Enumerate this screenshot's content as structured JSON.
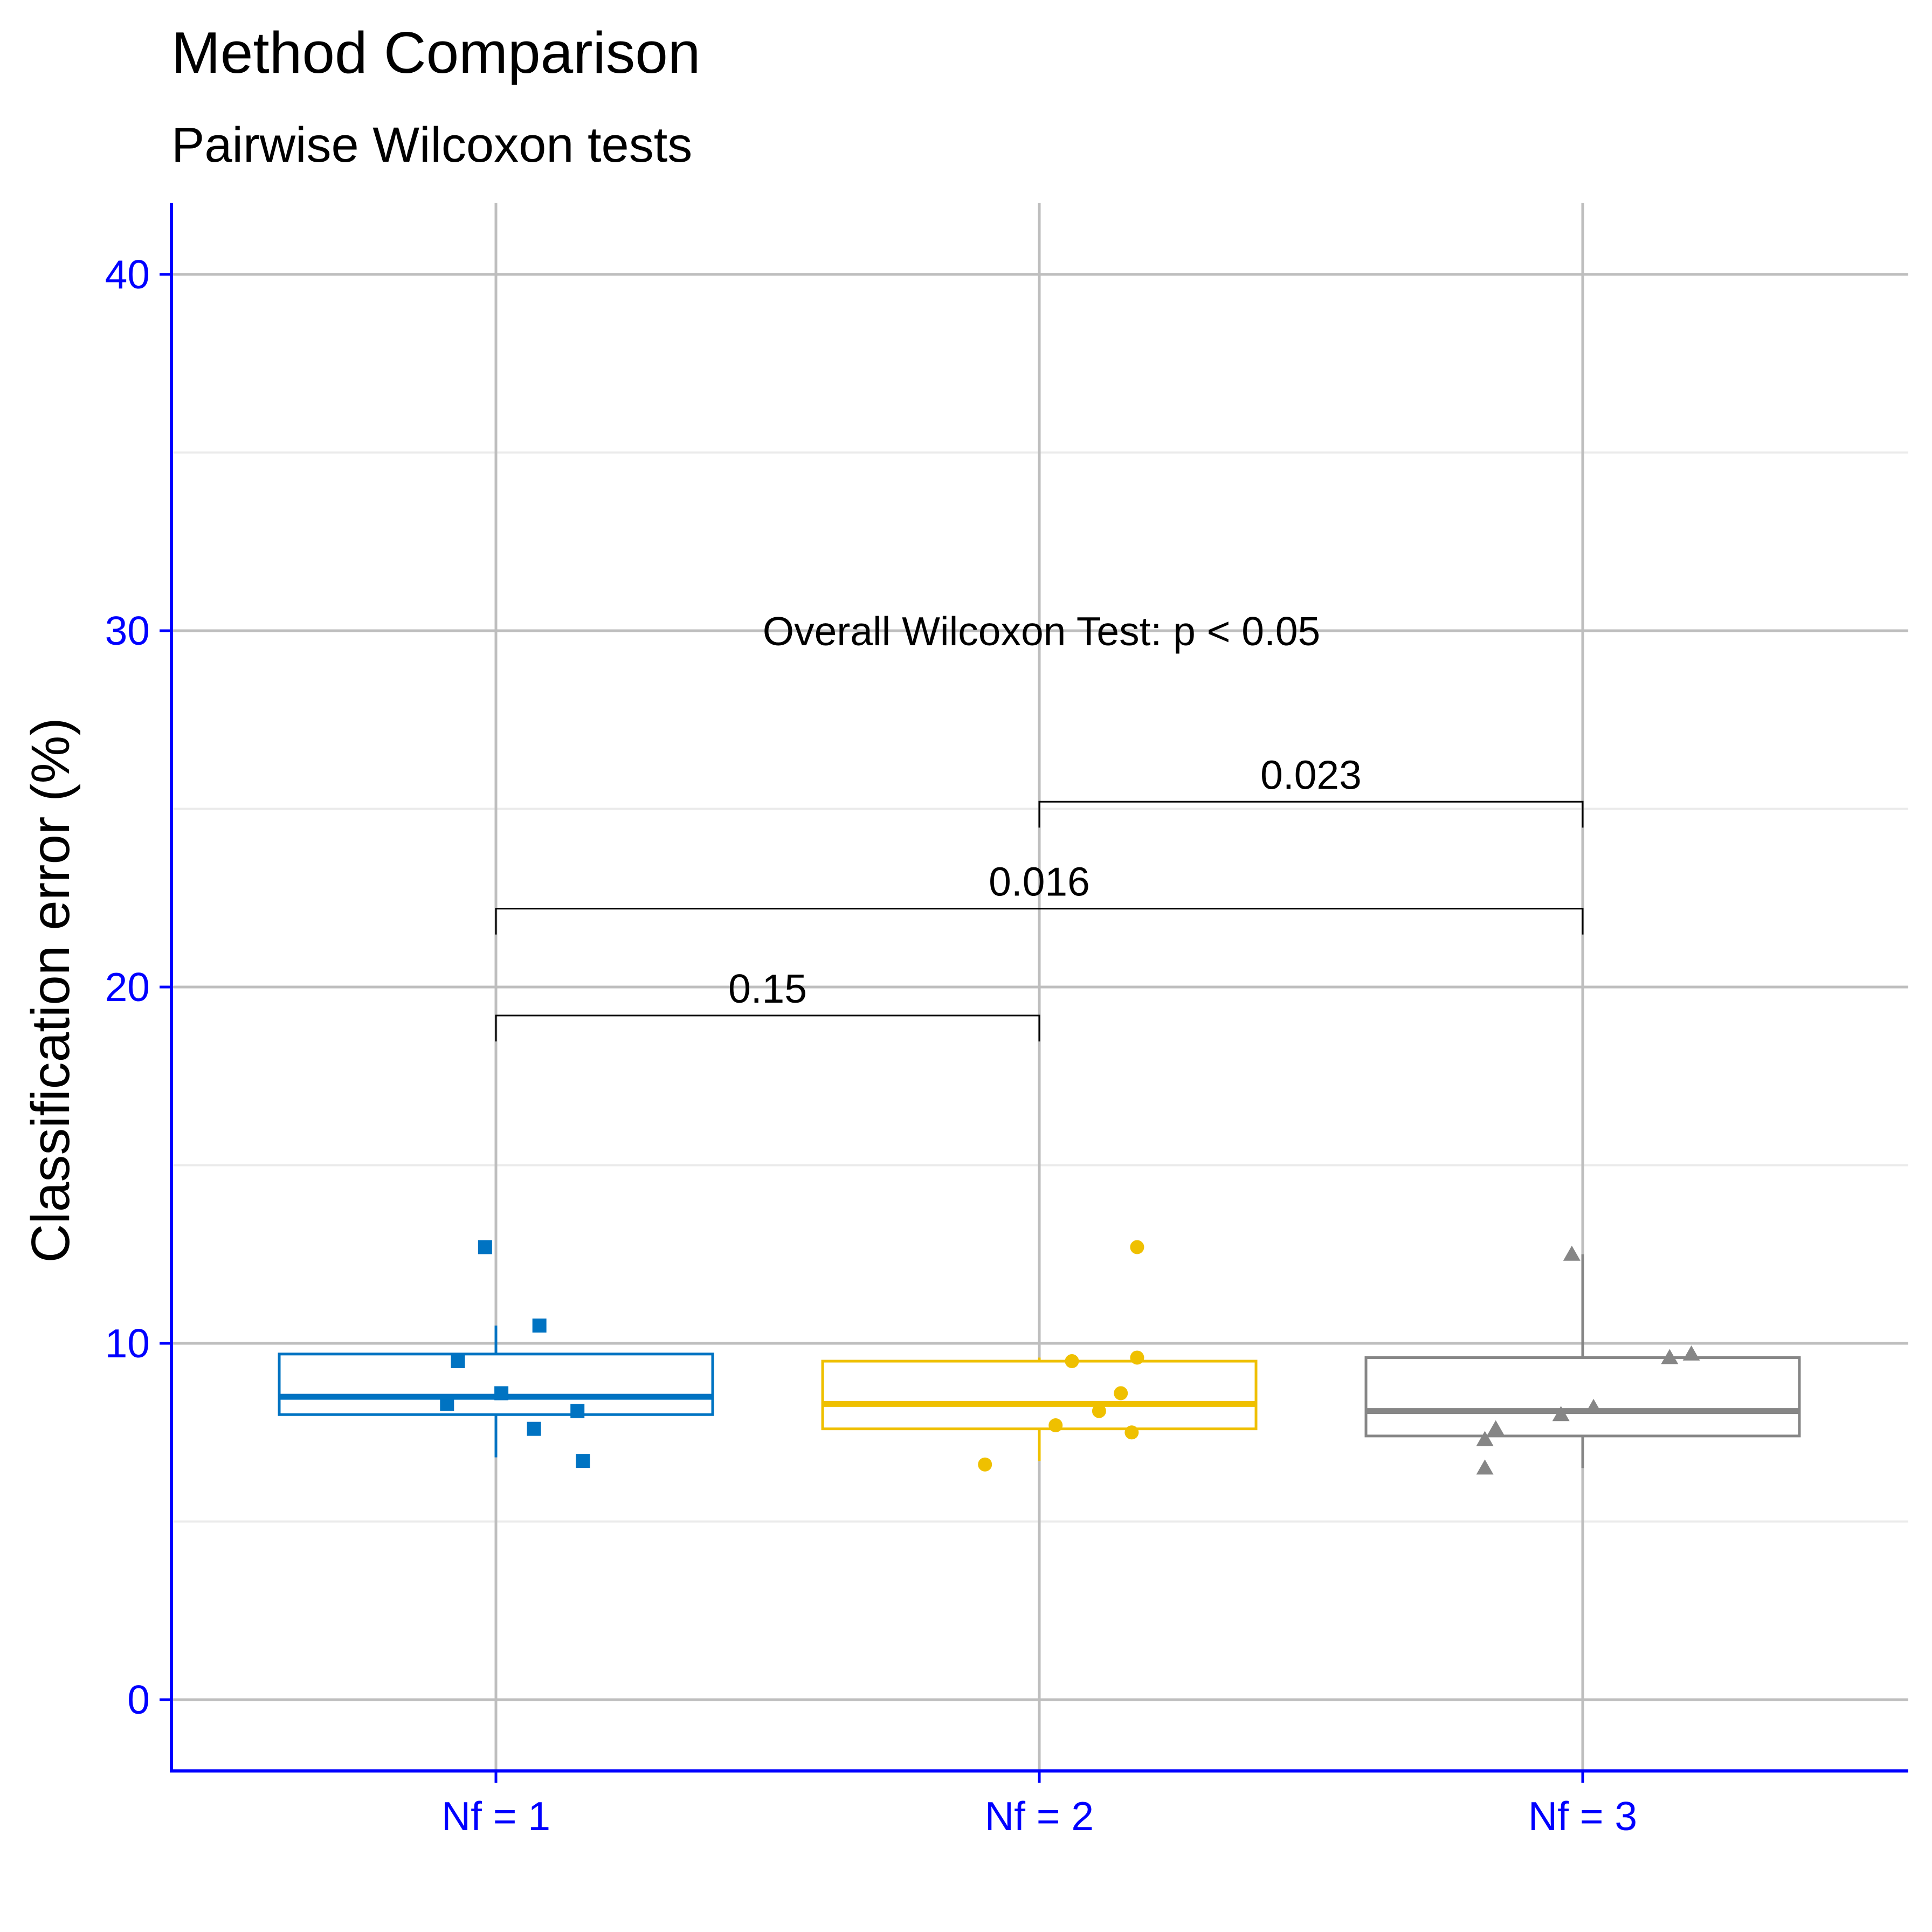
{
  "chart_data": {
    "type": "box",
    "title": "Method Comparison",
    "subtitle": "Pairwise Wilcoxon tests",
    "xlabel": "",
    "ylabel": "Classification error (%)",
    "ylim": [
      -2,
      42
    ],
    "yticks": [
      0,
      10,
      20,
      30,
      40
    ],
    "grid": true,
    "legend": "none",
    "axis_color": "#0000FF",
    "categories": [
      "Nf = 1",
      "Nf = 2",
      "Nf = 3"
    ],
    "series": [
      {
        "category": "Nf = 1",
        "color": "#0073C2",
        "point_shape": "square",
        "box": {
          "lower": 8.0,
          "q1": 8.0,
          "median": 8.5,
          "q3": 9.7,
          "upper": 10.5,
          "whisker_low": 6.8
        },
        "points": [
          {
            "dx": -0.02,
            "y": 12.7
          },
          {
            "dx": 0.08,
            "y": 10.5
          },
          {
            "dx": -0.07,
            "y": 9.5
          },
          {
            "dx": 0.01,
            "y": 8.6
          },
          {
            "dx": -0.09,
            "y": 8.3
          },
          {
            "dx": 0.15,
            "y": 8.1
          },
          {
            "dx": 0.07,
            "y": 7.6
          },
          {
            "dx": 0.16,
            "y": 6.7
          }
        ]
      },
      {
        "category": "Nf = 2",
        "color": "#EFC000",
        "point_shape": "circle",
        "box": {
          "q1": 7.6,
          "median": 8.3,
          "q3": 9.5,
          "upper": 9.6,
          "whisker_low": 6.7
        },
        "points": [
          {
            "dx": 0.18,
            "y": 12.7
          },
          {
            "dx": 0.18,
            "y": 9.6
          },
          {
            "dx": 0.06,
            "y": 9.5
          },
          {
            "dx": 0.15,
            "y": 8.6
          },
          {
            "dx": 0.11,
            "y": 8.1
          },
          {
            "dx": 0.03,
            "y": 7.7
          },
          {
            "dx": 0.17,
            "y": 7.5
          },
          {
            "dx": -0.1,
            "y": 6.6
          }
        ]
      },
      {
        "category": "Nf = 3",
        "color": "#868686",
        "point_shape": "triangle",
        "box": {
          "q1": 7.4,
          "median": 8.1,
          "q3": 9.6,
          "upper": 12.5,
          "whisker_low": 6.5
        },
        "points": [
          {
            "dx": -0.02,
            "y": 12.5
          },
          {
            "dx": 0.2,
            "y": 9.7
          },
          {
            "dx": 0.16,
            "y": 9.6
          },
          {
            "dx": 0.02,
            "y": 8.2
          },
          {
            "dx": -0.04,
            "y": 8.0
          },
          {
            "dx": -0.16,
            "y": 7.6
          },
          {
            "dx": -0.18,
            "y": 7.3
          },
          {
            "dx": -0.18,
            "y": 6.5
          }
        ]
      }
    ],
    "comparisons": [
      {
        "from": 0,
        "to": 1,
        "label": "0.15",
        "y": 19.2
      },
      {
        "from": 0,
        "to": 2,
        "label": "0.016",
        "y": 22.2
      },
      {
        "from": 1,
        "to": 2,
        "label": "0.023",
        "y": 25.2
      }
    ],
    "annotation": {
      "text": "Overall Wilcoxon Test: p < 0.05",
      "y": 30
    }
  }
}
